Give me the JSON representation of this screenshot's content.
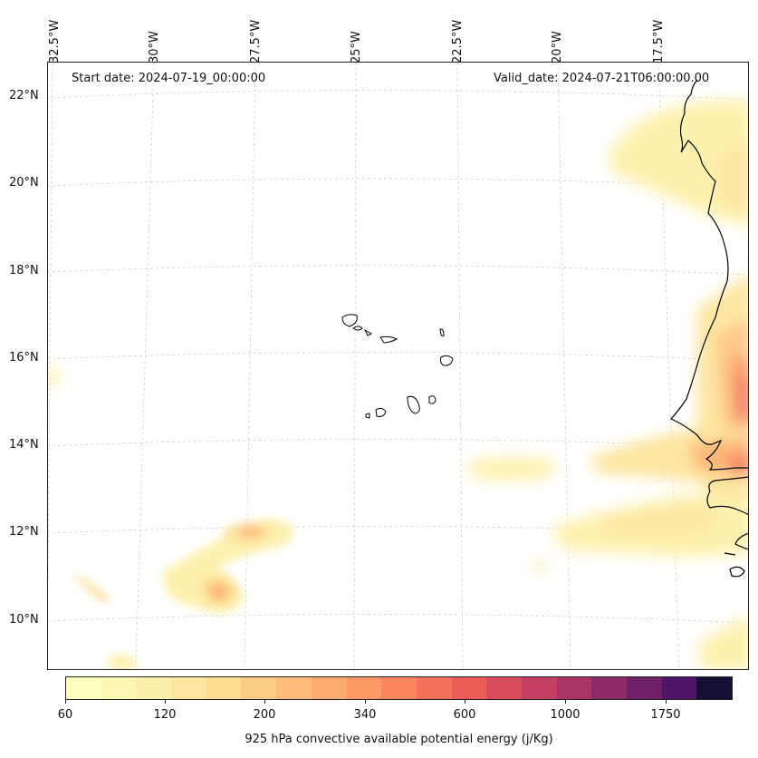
{
  "map": {
    "start_date": "Start date: 2024-07-19_00:00:00",
    "valid_date": "Valid_date: 2024-07-21T06:00:00.00",
    "lon_labels": [
      "32.5°W",
      "30°W",
      "27.5°W",
      "25°W",
      "22.5°W",
      "20°W",
      "17.5°W"
    ],
    "lat_labels": [
      "22°N",
      "20°N",
      "18°N",
      "16°N",
      "14°N",
      "12°N",
      "10°N"
    ]
  },
  "colorbar": {
    "label": "925 hPa convective available potential energy (j/Kg)",
    "ticks": [
      "60",
      "120",
      "200",
      "340",
      "600",
      "1000",
      "1750"
    ],
    "colors": [
      "#fcfdbf",
      "#fcf7b7",
      "#fcefac",
      "#fde6a0",
      "#fddb93",
      "#fdcd87",
      "#fdbc7c",
      "#fdac71",
      "#fc9966",
      "#fb865e",
      "#f67159",
      "#ea5d59",
      "#da4b5d",
      "#c43f63",
      "#a93567",
      "#8c2b68",
      "#6f2067",
      "#4f1566",
      "#150e37"
    ]
  }
}
